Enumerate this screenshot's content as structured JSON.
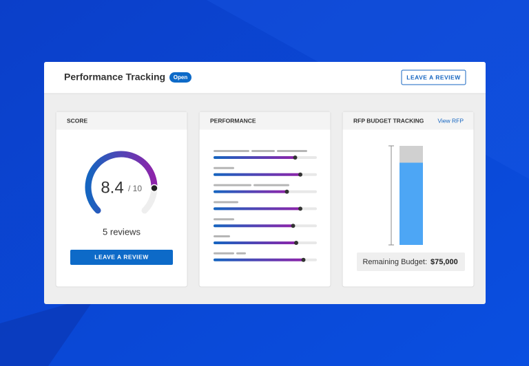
{
  "header": {
    "title": "Performance Tracking",
    "badge": "Open",
    "button": "LEAVE A REVIEW"
  },
  "score": {
    "heading": "SCORE",
    "value": 8.4,
    "max": 10,
    "max_label": "/ 10",
    "reviews": "5 reviews",
    "button": "LEAVE A REVIEW"
  },
  "performance": {
    "heading": "PERFORMANCE",
    "values": [
      79,
      84,
      71,
      84,
      77,
      80,
      87
    ]
  },
  "budget": {
    "heading": "RFP BUDGET TRACKING",
    "link": "View RFP",
    "remaining_percent": 83,
    "remaining_label": "Remaining Budget:",
    "remaining_amount": "$75,000"
  }
}
